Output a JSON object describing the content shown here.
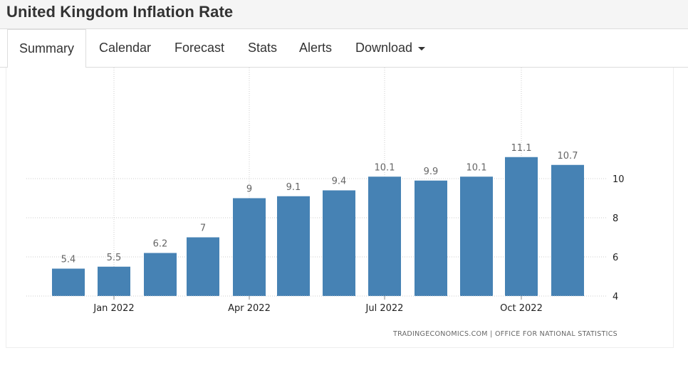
{
  "header": {
    "title": "United Kingdom Inflation Rate"
  },
  "tabs": [
    {
      "label": "Summary",
      "active": true
    },
    {
      "label": "Calendar"
    },
    {
      "label": "Forecast"
    },
    {
      "label": "Stats"
    },
    {
      "label": "Alerts"
    },
    {
      "label": "Download",
      "dropdown": true
    }
  ],
  "chart_data": {
    "type": "bar",
    "months": [
      "Dec 2021",
      "Jan 2022",
      "Feb 2022",
      "Mar 2022",
      "Apr 2022",
      "May 2022",
      "Jun 2022",
      "Jul 2022",
      "Aug 2022",
      "Sep 2022",
      "Oct 2022",
      "Nov 2022"
    ],
    "values": [
      5.4,
      5.5,
      6.2,
      7,
      9,
      9.1,
      9.4,
      10.1,
      9.9,
      10.1,
      11.1,
      10.7
    ],
    "value_labels": [
      "5.4",
      "5.5",
      "6.2",
      "7",
      "9",
      "9.1",
      "9.4",
      "10.1",
      "9.9",
      "10.1",
      "11.1",
      "10.7"
    ],
    "x_tick_labels": [
      "Jan 2022",
      "Apr 2022",
      "Jul 2022",
      "Oct 2022"
    ],
    "x_tick_months": [
      "Jan 2022",
      "Apr 2022",
      "Jul 2022",
      "Oct 2022"
    ],
    "y_ticks": [
      4,
      6,
      8,
      10
    ],
    "ylim": [
      4,
      12
    ],
    "y_axis_side": "right",
    "grid": true,
    "bar_color": "#4682b4",
    "source": "TRADINGECONOMICS.COM  |  OFFICE FOR NATIONAL STATISTICS"
  }
}
